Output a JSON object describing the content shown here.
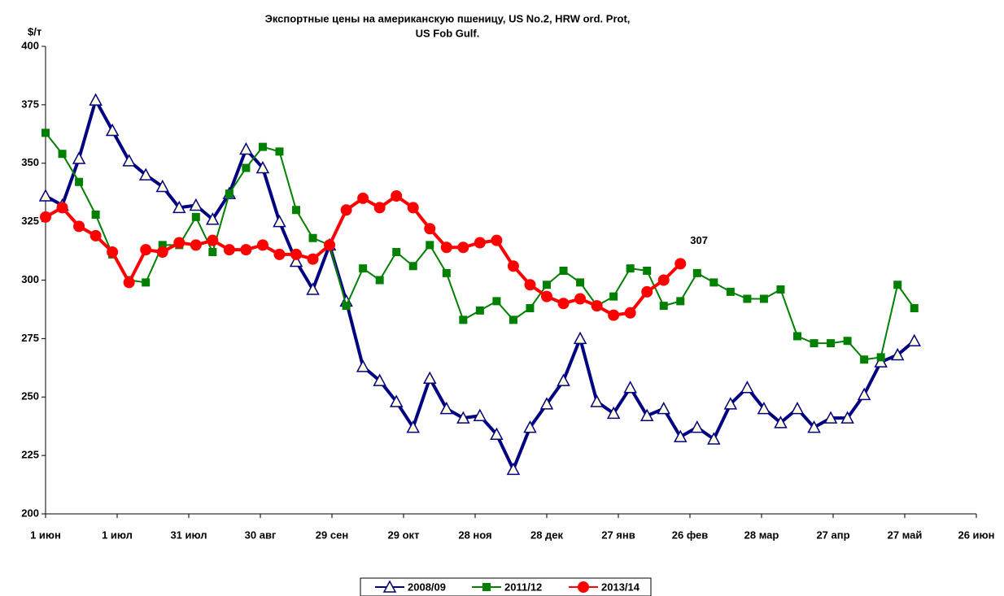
{
  "chart_data": {
    "type": "line",
    "title": "Экспортные цены на американскую пшеницу,  US No.2, HRW ord. Prot,",
    "subtitle": "US Fob Gulf.",
    "y_label": "$/т",
    "x": [
      0,
      7,
      14,
      21,
      28,
      35,
      42,
      49,
      56,
      63,
      70,
      77,
      84,
      91,
      98,
      105,
      112,
      119,
      126,
      133,
      140,
      147,
      154,
      161,
      168,
      175,
      182,
      189,
      196,
      203,
      210,
      217,
      224,
      231,
      238,
      245,
      252,
      259,
      266,
      273,
      280,
      287,
      294,
      301,
      308,
      315,
      322,
      329,
      336,
      343,
      350,
      357,
      364
    ],
    "xlim": [
      0,
      390
    ],
    "xticks": [
      {
        "value": 0,
        "label": "1 июн"
      },
      {
        "value": 30,
        "label": "1 июл"
      },
      {
        "value": 60,
        "label": "31 июл"
      },
      {
        "value": 90,
        "label": "30 авг"
      },
      {
        "value": 120,
        "label": "29 сен"
      },
      {
        "value": 150,
        "label": "29 окт"
      },
      {
        "value": 180,
        "label": "28 ноя"
      },
      {
        "value": 210,
        "label": "28 дек"
      },
      {
        "value": 240,
        "label": "27 янв"
      },
      {
        "value": 270,
        "label": "26 фев"
      },
      {
        "value": 300,
        "label": "28 мар"
      },
      {
        "value": 330,
        "label": "27 апр"
      },
      {
        "value": 360,
        "label": "27 май"
      },
      {
        "value": 390,
        "label": "26 июн"
      }
    ],
    "ylim": [
      200,
      400
    ],
    "yticks": [
      200,
      225,
      250,
      275,
      300,
      325,
      350,
      375,
      400
    ],
    "grid": false,
    "legend": "bottom",
    "series": [
      {
        "name": "2008/09",
        "color": "#000080",
        "marker": "triangle",
        "values": [
          336,
          332,
          352,
          377,
          364,
          351,
          345,
          340,
          331,
          332,
          326,
          337,
          356,
          348,
          325,
          308,
          296,
          315,
          291,
          263,
          257,
          248,
          237,
          258,
          245,
          241,
          242,
          234,
          219,
          237,
          247,
          257,
          275,
          248,
          243,
          254,
          242,
          245,
          233,
          237,
          232,
          247,
          254,
          245,
          239,
          245,
          237,
          241,
          241,
          251,
          265,
          268,
          274
        ]
      },
      {
        "name": "2011/12",
        "color": "#008000",
        "marker": "square",
        "values": [
          363,
          354,
          342,
          328,
          311,
          300,
          299,
          315,
          315,
          327,
          312,
          337,
          348,
          357,
          355,
          330,
          318,
          315,
          289,
          305,
          300,
          312,
          306,
          315,
          303,
          283,
          287,
          291,
          283,
          288,
          298,
          304,
          299,
          289,
          293,
          305,
          304,
          289,
          291,
          303,
          299,
          295,
          292,
          292,
          296,
          276,
          273,
          273,
          274,
          266,
          267,
          298,
          288
        ]
      },
      {
        "name": "2013/14",
        "color": "#ff0000",
        "marker": "circle",
        "label_last": true,
        "values": [
          327,
          331,
          323,
          319,
          312,
          299,
          313,
          312,
          316,
          315,
          317,
          313,
          313,
          315,
          311,
          311,
          309,
          315,
          330,
          335,
          331,
          336,
          331,
          322,
          314,
          314,
          316,
          317,
          306,
          298,
          293,
          290,
          292,
          289,
          285,
          286,
          295,
          300,
          307,
          null,
          null,
          null,
          null,
          null,
          null,
          null,
          null,
          null,
          null,
          null,
          null,
          null,
          null
        ]
      }
    ]
  }
}
